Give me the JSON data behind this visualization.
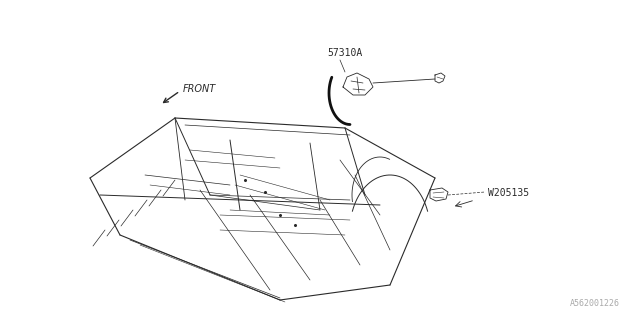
{
  "background_color": "#ffffff",
  "diagram_id": "A562001226",
  "front_label": "FRONT",
  "part_label_1": "57310A",
  "part_label_2": "W205135",
  "line_color": "#2a2a2a",
  "text_color": "#2a2a2a",
  "diagram_id_color": "#aaaaaa",
  "fig_width": 6.4,
  "fig_height": 3.2,
  "dpi": 100
}
